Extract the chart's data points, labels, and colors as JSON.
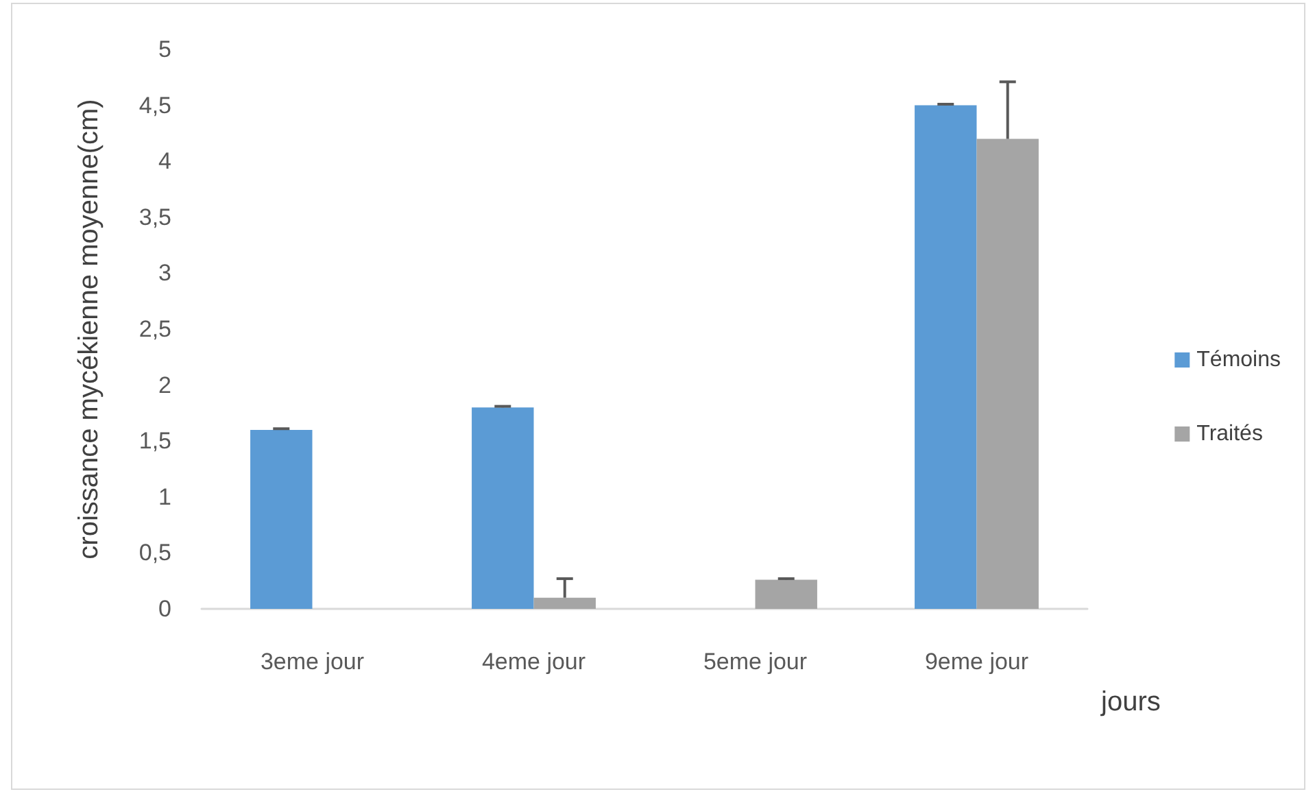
{
  "chart_data": {
    "type": "bar",
    "xlabel": "jours",
    "ylabel": "croissance mycékienne moyenne(cm)",
    "categories": [
      "3eme jour",
      "4eme jour",
      "5eme jour",
      "9eme jour"
    ],
    "series": [
      {
        "name": "Témoins",
        "color": "#5b9bd5",
        "values": [
          1.6,
          1.8,
          0,
          4.5
        ],
        "errors": [
          [
            1.6,
            1.61
          ],
          [
            1.8,
            1.81
          ],
          null,
          [
            4.5,
            4.51
          ]
        ]
      },
      {
        "name": "Traités",
        "color": "#a5a5a5",
        "values": [
          0,
          0.1,
          0.26,
          4.2
        ],
        "errors": [
          null,
          [
            0.1,
            0.27
          ],
          [
            0.26,
            0.27
          ],
          [
            4.2,
            4.71
          ]
        ]
      }
    ],
    "ylim": [
      0,
      5
    ],
    "yticks": [
      0,
      {
        "value": 0.5,
        "label": "0,5"
      },
      1,
      {
        "value": 1.5,
        "label": "1,5"
      },
      2,
      {
        "value": 2.5,
        "label": "2,5"
      },
      3,
      {
        "value": 3.5,
        "label": "3,5"
      },
      4,
      {
        "value": 4.5,
        "label": "4,5"
      },
      5
    ],
    "grid": false,
    "legend": "right"
  }
}
